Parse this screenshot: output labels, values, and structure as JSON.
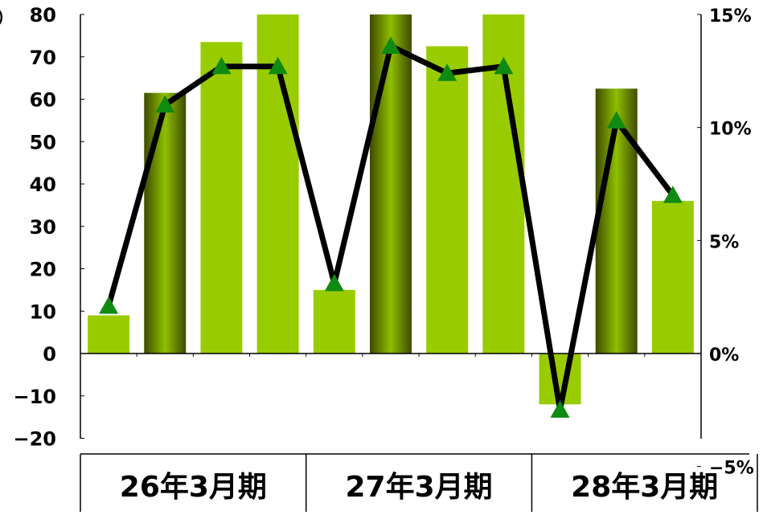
{
  "chart_data": {
    "type": "bar+line",
    "left_axis": {
      "ylim": [
        -20,
        80
      ],
      "ticks": [
        "80",
        "70",
        "60",
        "50",
        "40",
        "30",
        "20",
        "10",
        "0",
        "−10",
        "−20"
      ],
      "tick_values": [
        80,
        70,
        60,
        50,
        40,
        30,
        20,
        10,
        0,
        -10,
        -20
      ],
      "clipped_label": "）"
    },
    "right_axis": {
      "ylim": [
        -5,
        15
      ],
      "ticks": [
        "15%",
        "10%",
        "5%",
        "0%",
        "−5%"
      ],
      "tick_values": [
        15,
        10,
        5,
        0,
        -5
      ]
    },
    "groups": [
      {
        "label": "26年3月期",
        "start": 0,
        "count": 4
      },
      {
        "label": "27年3月期",
        "start": 4,
        "count": 4
      },
      {
        "label": "28年3月期",
        "start": 8,
        "count": 3
      }
    ],
    "bars": {
      "values": [
        9,
        61.5,
        73.5,
        80,
        15,
        80,
        72.5,
        80,
        -12,
        62.5,
        36
      ],
      "style": [
        "flat",
        "gradient",
        "flat",
        "flat",
        "flat",
        "gradient",
        "flat",
        "flat",
        "flat",
        "gradient",
        "flat"
      ],
      "color": "#99CC00",
      "gradient_colors": [
        "#3F4A00",
        "#8FBF00",
        "#3F4A00"
      ]
    },
    "line": {
      "values": [
        2.1,
        11.0,
        12.7,
        12.7,
        3.1,
        13.6,
        12.4,
        12.7,
        -2.5,
        10.3,
        7.0
      ],
      "line_color": "#000000",
      "marker": "triangle",
      "marker_color": "#108A10"
    }
  }
}
